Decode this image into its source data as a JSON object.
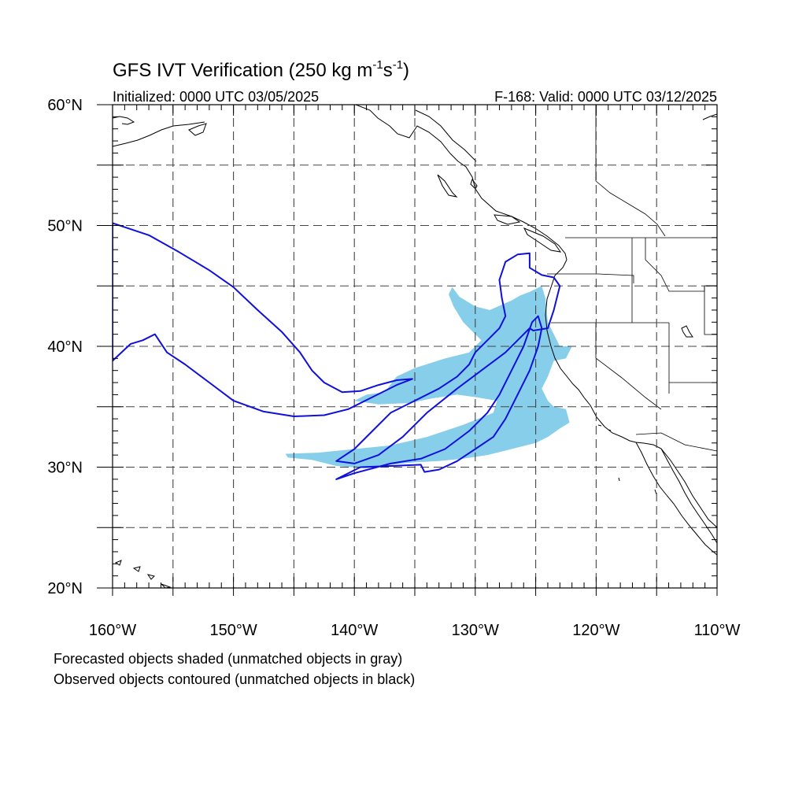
{
  "figure": {
    "title_main": "GFS IVT Verification (250 kg m",
    "title_sup1": "-1",
    "title_mid": "s",
    "title_sup2": "-1",
    "title_end": ")",
    "init_label": "Initialized: 0000 UTC 03/05/2025",
    "valid_label": "F-168: Valid: 0000 UTC 03/12/2025",
    "caption_line1": "Forecasted objects shaded (unmatched objects in gray)",
    "caption_line2": "Observed objects contoured (unmatched objects in black)"
  },
  "map": {
    "lon_range": [
      -160,
      -110
    ],
    "lat_range": [
      20,
      60
    ],
    "lon_ticks": [
      {
        "value": -160,
        "label": "160°W"
      },
      {
        "value": -150,
        "label": "150°W"
      },
      {
        "value": -140,
        "label": "140°W"
      },
      {
        "value": -130,
        "label": "130°W"
      },
      {
        "value": -120,
        "label": "120°W"
      },
      {
        "value": -110,
        "label": "110°W"
      }
    ],
    "lat_ticks": [
      {
        "value": 20,
        "label": "20°N"
      },
      {
        "value": 30,
        "label": "30°N"
      },
      {
        "value": 40,
        "label": "40°N"
      },
      {
        "value": 50,
        "label": "50°N"
      },
      {
        "value": 60,
        "label": "60°N"
      }
    ],
    "grid_lons": [
      -155,
      -150,
      -145,
      -140,
      -135,
      -130,
      -125,
      -120,
      -115
    ],
    "grid_lats": [
      25,
      30,
      35,
      40,
      45,
      50,
      55
    ],
    "colors": {
      "forecast_fill": "#87CEEB",
      "observed_line": "#1010dd",
      "coast": "#000000",
      "grid": "#444444"
    },
    "forecast_objects": [
      {
        "name": "forecast-object-main",
        "points": [
          [
            -131.9,
            44.9
          ],
          [
            -131.3,
            44.1
          ],
          [
            -130.0,
            43.3
          ],
          [
            -128.8,
            43.0
          ],
          [
            -127.0,
            43.8
          ],
          [
            -126.3,
            44.2
          ],
          [
            -125.5,
            44.5
          ],
          [
            -124.5,
            45.0
          ],
          [
            -124.2,
            44.0
          ],
          [
            -124.0,
            42.0
          ],
          [
            -123.5,
            41.0
          ],
          [
            -123.0,
            40.0
          ],
          [
            -122.0,
            40.0
          ],
          [
            -122.5,
            39.0
          ],
          [
            -123.5,
            38.8
          ],
          [
            -124.0,
            37.5
          ],
          [
            -124.5,
            36.5
          ],
          [
            -124.0,
            35.5
          ],
          [
            -123.5,
            35.0
          ],
          [
            -122.5,
            34.8
          ],
          [
            -122.2,
            33.7
          ],
          [
            -123.0,
            33.2
          ],
          [
            -124.0,
            32.5
          ],
          [
            -125.0,
            32.0
          ],
          [
            -127.0,
            31.5
          ],
          [
            -129.0,
            31.0
          ],
          [
            -131.0,
            30.7
          ],
          [
            -133.0,
            30.5
          ],
          [
            -135.0,
            30.4
          ],
          [
            -137.0,
            30.2
          ],
          [
            -139.0,
            29.9
          ],
          [
            -141.5,
            30.1
          ],
          [
            -143.5,
            30.6
          ],
          [
            -145.5,
            30.8
          ],
          [
            -145.7,
            31.1
          ],
          [
            -143.0,
            31.2
          ],
          [
            -140.0,
            31.5
          ],
          [
            -137.0,
            31.8
          ],
          [
            -134.0,
            32.5
          ],
          [
            -131.0,
            33.5
          ],
          [
            -128.5,
            34.5
          ],
          [
            -128.2,
            35.5
          ],
          [
            -130.0,
            35.8
          ],
          [
            -131.5,
            36.0
          ],
          [
            -133.5,
            35.7
          ],
          [
            -135.5,
            35.3
          ],
          [
            -138.0,
            35.2
          ],
          [
            -140.0,
            35.5
          ],
          [
            -139.0,
            36.0
          ],
          [
            -137.5,
            36.2
          ],
          [
            -136.5,
            37.5
          ],
          [
            -135.0,
            38.2
          ],
          [
            -132.5,
            39.0
          ],
          [
            -130.5,
            39.5
          ],
          [
            -129.5,
            40.5
          ],
          [
            -130.2,
            41.2
          ],
          [
            -131.0,
            42.0
          ],
          [
            -131.8,
            43.3
          ],
          [
            -132.2,
            44.3
          ]
        ]
      }
    ],
    "observed_objects": [
      {
        "name": "observed-contour-north",
        "points": [
          [
            -160.0,
            50.2
          ],
          [
            -157.0,
            49.2
          ],
          [
            -154.5,
            47.8
          ],
          [
            -152.0,
            46.3
          ],
          [
            -150.0,
            44.9
          ],
          [
            -148.0,
            43.0
          ],
          [
            -146.0,
            41.2
          ],
          [
            -144.5,
            39.5
          ],
          [
            -143.5,
            38.0
          ],
          [
            -142.5,
            37.0
          ],
          [
            -141.0,
            36.2
          ],
          [
            -139.5,
            36.3
          ],
          [
            -138.0,
            36.8
          ],
          [
            -136.5,
            37.2
          ],
          [
            -135.2,
            37.3
          ],
          [
            -136.5,
            36.8
          ],
          [
            -138.5,
            35.8
          ],
          [
            -140.5,
            34.8
          ],
          [
            -142.5,
            34.3
          ],
          [
            -145.0,
            34.2
          ],
          [
            -147.5,
            34.6
          ],
          [
            -150.0,
            35.5
          ],
          [
            -152.0,
            37.0
          ],
          [
            -154.0,
            38.5
          ],
          [
            -155.5,
            39.5
          ],
          [
            -156.5,
            41.0
          ],
          [
            -157.5,
            40.5
          ],
          [
            -158.5,
            40.2
          ],
          [
            -160.0,
            38.8
          ]
        ]
      },
      {
        "name": "observed-contour-southwest",
        "points": [
          [
            -141.5,
            29.0
          ],
          [
            -139.5,
            30.0
          ],
          [
            -137.0,
            30.1
          ],
          [
            -134.5,
            30.2
          ],
          [
            -134.2,
            29.6
          ],
          [
            -133.0,
            29.8
          ],
          [
            -131.5,
            30.5
          ],
          [
            -130.0,
            31.5
          ],
          [
            -128.5,
            32.5
          ],
          [
            -127.5,
            34.0
          ],
          [
            -126.5,
            36.0
          ],
          [
            -125.5,
            38.0
          ],
          [
            -124.8,
            40.0
          ],
          [
            -124.5,
            41.5
          ],
          [
            -124.8,
            42.5
          ],
          [
            -125.3,
            42.0
          ],
          [
            -126.0,
            40.0
          ],
          [
            -127.0,
            38.0
          ],
          [
            -128.0,
            36.0
          ],
          [
            -129.0,
            34.5
          ],
          [
            -130.5,
            33.0
          ],
          [
            -132.5,
            31.5
          ],
          [
            -134.5,
            30.7
          ],
          [
            -137.0,
            30.3
          ],
          [
            -140.0,
            29.5
          ]
        ]
      },
      {
        "name": "observed-contour-main",
        "points": [
          [
            -125.5,
            47.7
          ],
          [
            -126.5,
            47.6
          ],
          [
            -127.5,
            47.0
          ],
          [
            -128.0,
            45.5
          ],
          [
            -127.8,
            44.0
          ],
          [
            -127.5,
            42.5
          ],
          [
            -128.0,
            41.5
          ],
          [
            -129.0,
            40.5
          ],
          [
            -130.0,
            39.5
          ],
          [
            -130.5,
            38.5
          ],
          [
            -131.5,
            37.5
          ],
          [
            -133.0,
            36.5
          ],
          [
            -135.0,
            35.5
          ],
          [
            -137.0,
            34.5
          ],
          [
            -138.5,
            33.0
          ],
          [
            -140.0,
            31.5
          ],
          [
            -141.5,
            30.5
          ],
          [
            -140.0,
            30.3
          ],
          [
            -138.0,
            31.0
          ],
          [
            -136.0,
            32.5
          ],
          [
            -134.0,
            34.5
          ],
          [
            -131.5,
            36.5
          ],
          [
            -129.5,
            38.0
          ],
          [
            -127.5,
            39.5
          ],
          [
            -126.5,
            40.5
          ],
          [
            -125.5,
            41.5
          ],
          [
            -125.2,
            41.3
          ],
          [
            -124.0,
            41.5
          ],
          [
            -123.5,
            43.0
          ],
          [
            -123.0,
            45.0
          ],
          [
            -123.5,
            45.7
          ],
          [
            -124.5,
            45.9
          ],
          [
            -125.5,
            46.5
          ]
        ]
      }
    ]
  }
}
